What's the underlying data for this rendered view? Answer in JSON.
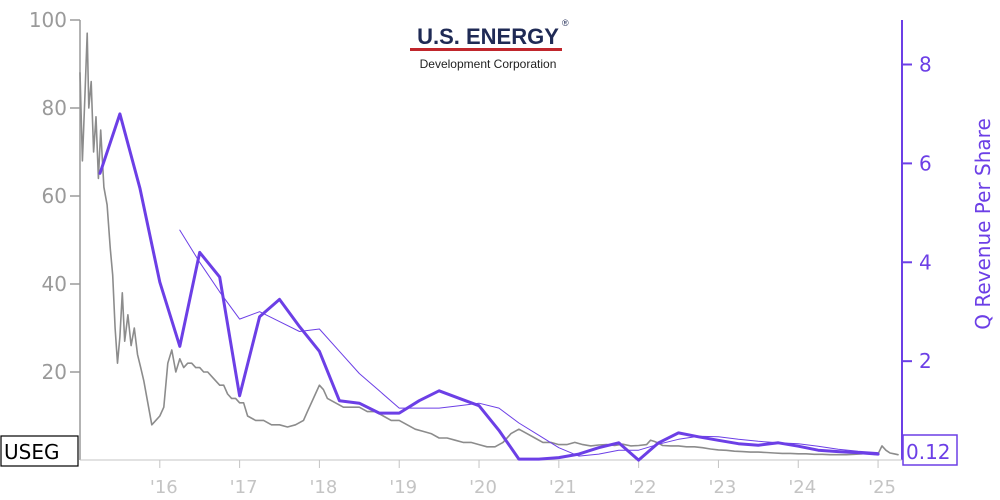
{
  "logo": {
    "name": "U.S. ENERGY",
    "registered": "®",
    "tagline": "Development Corporation",
    "name_color": "#1f2a55",
    "rule_color": "#c0262c"
  },
  "ticker": "USEG",
  "last_value_label": "0.12",
  "colors": {
    "price": "#8c8c8c",
    "revenue": "#6c3fe6",
    "left_axis": "#9a9a9a",
    "x_axis": "#c4c4c4"
  },
  "chart_data": {
    "type": "line",
    "title": "",
    "xlabel": "",
    "ylabel_left": "",
    "ylabel_right": "Q Revenue Per Share",
    "xlim": [
      2015.0,
      2025.3
    ],
    "ylim_left": [
      0,
      100
    ],
    "ylim_right": [
      -0.1,
      8.9
    ],
    "x_ticks": [
      {
        "x": 2016,
        "label": "'16"
      },
      {
        "x": 2017,
        "label": "'17"
      },
      {
        "x": 2018,
        "label": "'18"
      },
      {
        "x": 2019,
        "label": "'19"
      },
      {
        "x": 2020,
        "label": "'20"
      },
      {
        "x": 2021,
        "label": "'21"
      },
      {
        "x": 2022,
        "label": "'22"
      },
      {
        "x": 2023,
        "label": "'23"
      },
      {
        "x": 2024,
        "label": "'24"
      },
      {
        "x": 2025,
        "label": "'25"
      }
    ],
    "left_ticks": [
      "100",
      "80",
      "60",
      "40",
      "20"
    ],
    "left_tick_values": [
      100,
      80,
      60,
      40,
      20
    ],
    "right_ticks": [
      "8",
      "6",
      "4",
      "2"
    ],
    "right_tick_values": [
      8,
      6,
      4,
      2
    ],
    "grid": false,
    "series": [
      {
        "role": "price",
        "axis": "left",
        "points": [
          [
            2015.0,
            88
          ],
          [
            2015.03,
            68
          ],
          [
            2015.06,
            82
          ],
          [
            2015.09,
            97
          ],
          [
            2015.11,
            80
          ],
          [
            2015.14,
            86
          ],
          [
            2015.17,
            70
          ],
          [
            2015.2,
            78
          ],
          [
            2015.23,
            64
          ],
          [
            2015.26,
            75
          ],
          [
            2015.3,
            62
          ],
          [
            2015.34,
            58
          ],
          [
            2015.38,
            48
          ],
          [
            2015.41,
            42
          ],
          [
            2015.44,
            30
          ],
          [
            2015.47,
            22
          ],
          [
            2015.5,
            28
          ],
          [
            2015.53,
            38
          ],
          [
            2015.56,
            27
          ],
          [
            2015.6,
            33
          ],
          [
            2015.64,
            26
          ],
          [
            2015.68,
            30
          ],
          [
            2015.72,
            24
          ],
          [
            2015.76,
            21
          ],
          [
            2015.8,
            18
          ],
          [
            2015.85,
            13
          ],
          [
            2015.9,
            8
          ],
          [
            2015.95,
            9
          ],
          [
            2016.0,
            10
          ],
          [
            2016.05,
            12
          ],
          [
            2016.1,
            22
          ],
          [
            2016.15,
            25
          ],
          [
            2016.2,
            20
          ],
          [
            2016.25,
            23
          ],
          [
            2016.3,
            21
          ],
          [
            2016.35,
            22
          ],
          [
            2016.4,
            22
          ],
          [
            2016.45,
            21
          ],
          [
            2016.5,
            21
          ],
          [
            2016.55,
            20
          ],
          [
            2016.6,
            20
          ],
          [
            2016.65,
            19
          ],
          [
            2016.7,
            18
          ],
          [
            2016.75,
            17
          ],
          [
            2016.8,
            17
          ],
          [
            2016.85,
            15
          ],
          [
            2016.9,
            14
          ],
          [
            2016.95,
            14
          ],
          [
            2017.0,
            13
          ],
          [
            2017.05,
            13
          ],
          [
            2017.1,
            10
          ],
          [
            2017.2,
            9
          ],
          [
            2017.3,
            9
          ],
          [
            2017.4,
            8
          ],
          [
            2017.5,
            8
          ],
          [
            2017.6,
            7.5
          ],
          [
            2017.7,
            8
          ],
          [
            2017.8,
            9
          ],
          [
            2017.85,
            11
          ],
          [
            2017.9,
            13
          ],
          [
            2017.95,
            15
          ],
          [
            2018.0,
            17
          ],
          [
            2018.05,
            16
          ],
          [
            2018.1,
            14
          ],
          [
            2018.2,
            13
          ],
          [
            2018.3,
            12
          ],
          [
            2018.4,
            12
          ],
          [
            2018.5,
            12
          ],
          [
            2018.6,
            11
          ],
          [
            2018.7,
            11
          ],
          [
            2018.8,
            10
          ],
          [
            2018.9,
            9
          ],
          [
            2019.0,
            9
          ],
          [
            2019.1,
            8
          ],
          [
            2019.2,
            7
          ],
          [
            2019.3,
            6.5
          ],
          [
            2019.4,
            6
          ],
          [
            2019.5,
            5
          ],
          [
            2019.6,
            5
          ],
          [
            2019.7,
            4.5
          ],
          [
            2019.8,
            4
          ],
          [
            2019.9,
            4
          ],
          [
            2020.0,
            3.5
          ],
          [
            2020.1,
            3
          ],
          [
            2020.2,
            3
          ],
          [
            2020.3,
            4
          ],
          [
            2020.4,
            6
          ],
          [
            2020.5,
            7
          ],
          [
            2020.6,
            6
          ],
          [
            2020.7,
            5
          ],
          [
            2020.8,
            4
          ],
          [
            2020.9,
            4
          ],
          [
            2021.0,
            3.5
          ],
          [
            2021.1,
            3.5
          ],
          [
            2021.2,
            4
          ],
          [
            2021.3,
            3.5
          ],
          [
            2021.4,
            3.2
          ],
          [
            2021.5,
            3.4
          ],
          [
            2021.6,
            3.5
          ],
          [
            2021.7,
            3.3
          ],
          [
            2021.8,
            3.6
          ],
          [
            2021.9,
            3.2
          ],
          [
            2022.0,
            3.3
          ],
          [
            2022.1,
            3.5
          ],
          [
            2022.15,
            4.5
          ],
          [
            2022.2,
            4.2
          ],
          [
            2022.25,
            3.8
          ],
          [
            2022.3,
            3.3
          ],
          [
            2022.4,
            3.2
          ],
          [
            2022.5,
            3.2
          ],
          [
            2022.6,
            3.0
          ],
          [
            2022.7,
            3.0
          ],
          [
            2022.8,
            2.8
          ],
          [
            2022.9,
            2.5
          ],
          [
            2023.0,
            2.3
          ],
          [
            2023.1,
            2.2
          ],
          [
            2023.2,
            2.0
          ],
          [
            2023.3,
            1.9
          ],
          [
            2023.4,
            1.8
          ],
          [
            2023.5,
            1.8
          ],
          [
            2023.6,
            1.7
          ],
          [
            2023.7,
            1.6
          ],
          [
            2023.8,
            1.5
          ],
          [
            2023.9,
            1.5
          ],
          [
            2024.0,
            1.4
          ],
          [
            2024.1,
            1.4
          ],
          [
            2024.2,
            1.3
          ],
          [
            2024.3,
            1.3
          ],
          [
            2024.4,
            1.2
          ],
          [
            2024.5,
            1.2
          ],
          [
            2024.6,
            1.2
          ],
          [
            2024.7,
            1.3
          ],
          [
            2024.8,
            1.4
          ],
          [
            2024.85,
            1.6
          ],
          [
            2024.9,
            1.5
          ],
          [
            2024.95,
            1.3
          ],
          [
            2025.0,
            1.4
          ],
          [
            2025.05,
            3.2
          ],
          [
            2025.1,
            2.2
          ],
          [
            2025.15,
            1.6
          ],
          [
            2025.2,
            1.4
          ],
          [
            2025.25,
            1.2
          ]
        ]
      },
      {
        "role": "q_revenue_per_share",
        "axis": "right",
        "points": [
          [
            2015.25,
            5.8
          ],
          [
            2015.5,
            7.0
          ],
          [
            2015.75,
            5.5
          ],
          [
            2016.0,
            3.6
          ],
          [
            2016.25,
            2.3
          ],
          [
            2016.5,
            4.2
          ],
          [
            2016.75,
            3.7
          ],
          [
            2017.0,
            1.3
          ],
          [
            2017.25,
            2.9
          ],
          [
            2017.5,
            3.25
          ],
          [
            2017.75,
            2.7
          ],
          [
            2018.0,
            2.2
          ],
          [
            2018.25,
            1.2
          ],
          [
            2018.5,
            1.15
          ],
          [
            2018.75,
            0.95
          ],
          [
            2019.0,
            0.95
          ],
          [
            2019.25,
            1.2
          ],
          [
            2019.5,
            1.4
          ],
          [
            2019.75,
            1.25
          ],
          [
            2020.0,
            1.1
          ],
          [
            2020.25,
            0.6
          ],
          [
            2020.5,
            0.02
          ],
          [
            2020.75,
            0.02
          ],
          [
            2021.0,
            0.05
          ],
          [
            2021.25,
            0.12
          ],
          [
            2021.5,
            0.25
          ],
          [
            2021.75,
            0.35
          ],
          [
            2022.0,
            0.0
          ],
          [
            2022.25,
            0.35
          ],
          [
            2022.5,
            0.55
          ],
          [
            2022.75,
            0.47
          ],
          [
            2023.0,
            0.4
          ],
          [
            2023.25,
            0.33
          ],
          [
            2023.5,
            0.3
          ],
          [
            2023.75,
            0.35
          ],
          [
            2024.0,
            0.28
          ],
          [
            2024.25,
            0.2
          ],
          [
            2024.5,
            0.17
          ],
          [
            2024.75,
            0.15
          ],
          [
            2025.0,
            0.12
          ]
        ]
      },
      {
        "role": "q_revenue_per_share_trend",
        "axis": "right",
        "points": [
          [
            2016.25,
            4.65
          ],
          [
            2016.5,
            4.0
          ],
          [
            2016.75,
            3.4
          ],
          [
            2017.0,
            2.85
          ],
          [
            2017.25,
            3.0
          ],
          [
            2017.5,
            2.8
          ],
          [
            2017.75,
            2.6
          ],
          [
            2018.0,
            2.65
          ],
          [
            2018.25,
            2.2
          ],
          [
            2018.5,
            1.75
          ],
          [
            2018.75,
            1.4
          ],
          [
            2019.0,
            1.05
          ],
          [
            2019.25,
            1.05
          ],
          [
            2019.5,
            1.05
          ],
          [
            2019.75,
            1.1
          ],
          [
            2020.0,
            1.15
          ],
          [
            2020.25,
            1.05
          ],
          [
            2020.5,
            0.75
          ],
          [
            2020.75,
            0.5
          ],
          [
            2021.0,
            0.25
          ],
          [
            2021.25,
            0.08
          ],
          [
            2021.5,
            0.12
          ],
          [
            2021.75,
            0.2
          ],
          [
            2022.0,
            0.2
          ],
          [
            2022.25,
            0.32
          ],
          [
            2022.5,
            0.42
          ],
          [
            2022.75,
            0.48
          ],
          [
            2023.0,
            0.47
          ],
          [
            2023.25,
            0.42
          ],
          [
            2023.5,
            0.38
          ],
          [
            2023.75,
            0.35
          ],
          [
            2024.0,
            0.33
          ],
          [
            2024.25,
            0.28
          ],
          [
            2024.5,
            0.22
          ],
          [
            2024.75,
            0.18
          ],
          [
            2025.0,
            0.15
          ]
        ]
      }
    ]
  }
}
